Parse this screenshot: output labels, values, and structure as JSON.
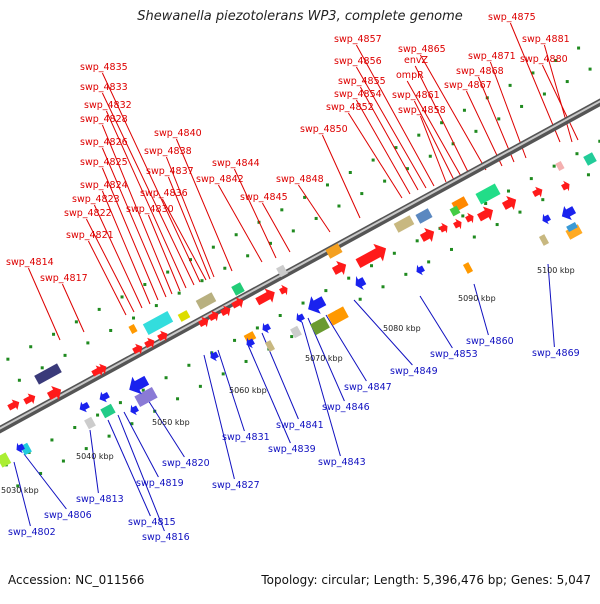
{
  "title": "Shewanella piezotolerans WP3, complete genome",
  "footer": {
    "accession": "Accession: NC_011566",
    "summary": "Topology: circular; Length: 5,396,476 bp; Genes: 5,047"
  },
  "colors": {
    "forward_label": "#dd0000",
    "reverse_label": "#1010c0",
    "forward_arrow": "#ff1a1a",
    "reverse_arrow": "#1a22ee",
    "backbone": "#8a8a8a",
    "tick": "#1f8a1f"
  },
  "kbp_labels": [
    "5030 kbp",
    "5040 kbp",
    "5050 kbp",
    "5060 kbp",
    "5070 kbp",
    "5080 kbp",
    "5090 kbp",
    "5100 kbp"
  ],
  "forward_genes": [
    "swp_4814",
    "swp_4817",
    "swp_4821",
    "swp_4822",
    "swp_4823",
    "swp_4824",
    "swp_4825",
    "swp_4826",
    "swp_4828",
    "swp_4830",
    "swp_4832",
    "swp_4833",
    "swp_4835",
    "swp_4836",
    "swp_4837",
    "swp_4838",
    "swp_4840",
    "swp_4842",
    "swp_4844",
    "swp_4845",
    "swp_4848",
    "swp_4850",
    "swp_4852",
    "swp_4854",
    "swp_4855",
    "swp_4856",
    "swp_4857",
    "swp_4858",
    "swp_4861",
    "ompR",
    "envZ",
    "swp_4865",
    "swp_4867",
    "swp_4868",
    "swp_4871",
    "swp_4875",
    "swp_4880",
    "swp_4881"
  ],
  "reverse_genes": [
    "swp_4802",
    "swp_4806",
    "swp_4813",
    "swp_4815",
    "swp_4816",
    "swp_4819",
    "swp_4820",
    "swp_4827",
    "swp_4831",
    "swp_4839",
    "swp_4841",
    "swp_4843",
    "swp_4846",
    "swp_4847",
    "swp_4849",
    "swp_4853",
    "swp_4860",
    "swp_4869"
  ]
}
